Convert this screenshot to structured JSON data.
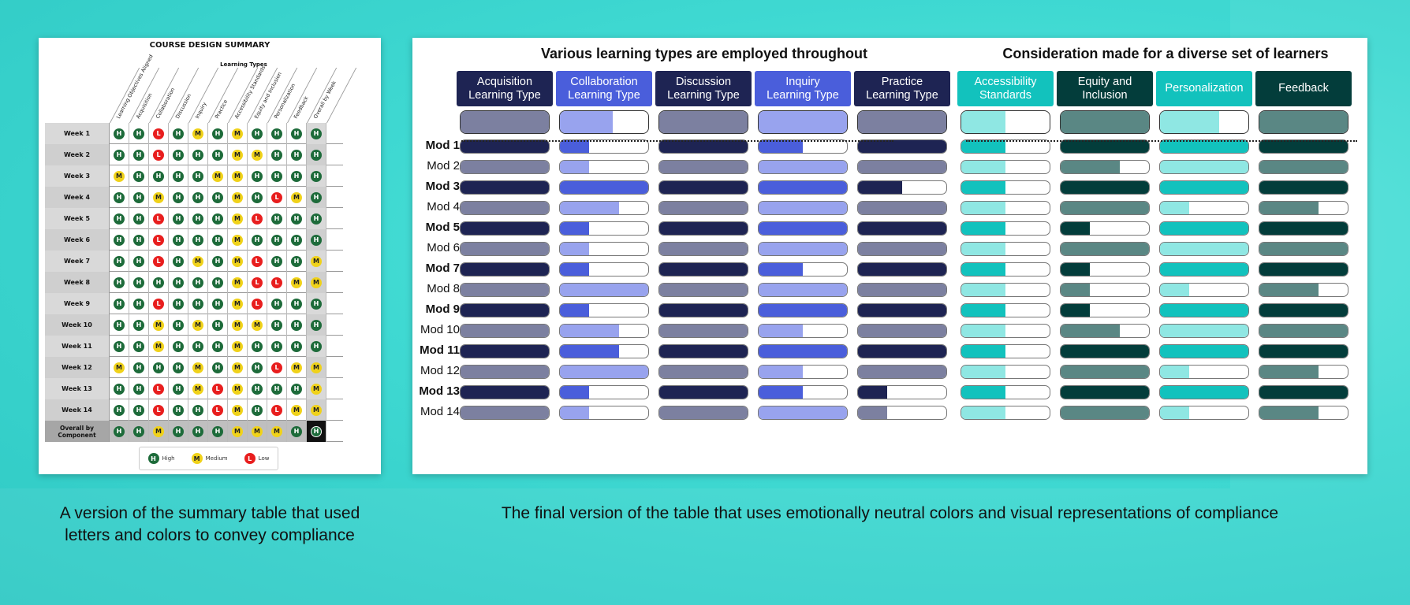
{
  "left_panel": {
    "title": "COURSE DESIGN SUMMARY",
    "group_header": "Learning Types",
    "columns": [
      "Learning Objectives Aligned",
      "Acquisition",
      "Collaboration",
      "Discussion",
      "Inquiry",
      "Practice",
      "Accessibility Standards",
      "Equity and Inclusion",
      "Personalization",
      "Feedback",
      "Overall by Week"
    ],
    "rows": [
      {
        "label": "Week 1",
        "ratings": [
          "H",
          "H",
          "L",
          "H",
          "M",
          "H",
          "M",
          "H",
          "H",
          "H",
          "H"
        ]
      },
      {
        "label": "Week 2",
        "ratings": [
          "H",
          "H",
          "L",
          "H",
          "H",
          "H",
          "M",
          "M",
          "H",
          "H",
          "H"
        ]
      },
      {
        "label": "Week 3",
        "ratings": [
          "M",
          "H",
          "H",
          "H",
          "H",
          "M",
          "M",
          "H",
          "H",
          "H",
          "H"
        ]
      },
      {
        "label": "Week 4",
        "ratings": [
          "H",
          "H",
          "M",
          "H",
          "H",
          "H",
          "M",
          "H",
          "L",
          "M",
          "H"
        ]
      },
      {
        "label": "Week 5",
        "ratings": [
          "H",
          "H",
          "L",
          "H",
          "H",
          "H",
          "M",
          "L",
          "H",
          "H",
          "H"
        ]
      },
      {
        "label": "Week 6",
        "ratings": [
          "H",
          "H",
          "L",
          "H",
          "H",
          "H",
          "M",
          "H",
          "H",
          "H",
          "H"
        ]
      },
      {
        "label": "Week 7",
        "ratings": [
          "H",
          "H",
          "L",
          "H",
          "M",
          "H",
          "M",
          "L",
          "H",
          "H",
          "M"
        ]
      },
      {
        "label": "Week 8",
        "ratings": [
          "H",
          "H",
          "H",
          "H",
          "H",
          "H",
          "M",
          "L",
          "L",
          "M",
          "M"
        ]
      },
      {
        "label": "Week 9",
        "ratings": [
          "H",
          "H",
          "L",
          "H",
          "H",
          "H",
          "M",
          "L",
          "H",
          "H",
          "H"
        ]
      },
      {
        "label": "Week 10",
        "ratings": [
          "H",
          "H",
          "M",
          "H",
          "M",
          "H",
          "M",
          "M",
          "H",
          "H",
          "H"
        ]
      },
      {
        "label": "Week 11",
        "ratings": [
          "H",
          "H",
          "M",
          "H",
          "H",
          "H",
          "M",
          "H",
          "H",
          "H",
          "H"
        ]
      },
      {
        "label": "Week 12",
        "ratings": [
          "M",
          "H",
          "H",
          "H",
          "M",
          "H",
          "M",
          "H",
          "L",
          "M",
          "M"
        ]
      },
      {
        "label": "Week 13",
        "ratings": [
          "H",
          "H",
          "L",
          "H",
          "M",
          "L",
          "M",
          "H",
          "H",
          "H",
          "M"
        ]
      },
      {
        "label": "Week 14",
        "ratings": [
          "H",
          "H",
          "L",
          "H",
          "H",
          "L",
          "M",
          "H",
          "L",
          "M",
          "M"
        ]
      }
    ],
    "overall": {
      "label_line1": "Overall by",
      "label_line2": "Component",
      "ratings": [
        "H",
        "H",
        "M",
        "H",
        "H",
        "H",
        "M",
        "M",
        "M",
        "H",
        "H"
      ]
    },
    "legend": [
      {
        "code": "H",
        "label": "High"
      },
      {
        "code": "M",
        "label": "Medium"
      },
      {
        "code": "L",
        "label": "Low"
      }
    ]
  },
  "right_panel": {
    "group_titles": [
      "Various learning types are employed throughout",
      "Consideration made for a diverse set of learners"
    ],
    "columns": [
      {
        "line1": "Acquisition",
        "line2": "Learning Type",
        "color": "#1e2453",
        "light": "#7c80a0",
        "head": "#1e2453",
        "summary": 1.0
      },
      {
        "line1": "Collaboration",
        "line2": "Learning Type",
        "color": "#4a5edb",
        "light": "#98a3ee",
        "head": "#4a5edb",
        "summary": 0.6
      },
      {
        "line1": "Discussion",
        "line2": "Learning Type",
        "color": "#1e2453",
        "light": "#7c80a0",
        "head": "#1e2453",
        "summary": 1.0
      },
      {
        "line1": "Inquiry",
        "line2": "Learning Type",
        "color": "#4a5edb",
        "light": "#98a3ee",
        "head": "#4a5edb",
        "summary": 1.0
      },
      {
        "line1": "Practice",
        "line2": "Learning Type",
        "color": "#1e2453",
        "light": "#7c80a0",
        "head": "#1e2453",
        "summary": 1.0
      },
      {
        "line1": "Accessibility",
        "line2": "Standards",
        "color": "#12c2bd",
        "light": "#8fe7e3",
        "head": "#12c2bd",
        "summary": 0.5
      },
      {
        "line1": "Equity and",
        "line2": "Inclusion",
        "color": "#033d3b",
        "light": "#5a8784",
        "head": "#033d3b",
        "summary": 1.0
      },
      {
        "line1": "Personalization",
        "line2": "",
        "color": "#12c2bd",
        "light": "#8fe7e3",
        "head": "#12c2bd",
        "summary": 0.67
      },
      {
        "line1": "Feedback",
        "line2": "",
        "color": "#033d3b",
        "light": "#5a8784",
        "head": "#033d3b",
        "summary": 1.0
      }
    ],
    "modules": [
      {
        "label": "Mod 1",
        "bold": true,
        "fills": [
          1,
          0.33,
          1,
          0.5,
          1,
          0.5,
          1,
          1,
          1
        ]
      },
      {
        "label": "Mod 2",
        "bold": false,
        "fills": [
          1,
          0.33,
          1,
          1,
          1,
          0.5,
          0.67,
          1,
          1
        ]
      },
      {
        "label": "Mod 3",
        "bold": true,
        "fills": [
          1,
          1,
          1,
          1,
          0.5,
          0.5,
          1,
          1,
          1
        ]
      },
      {
        "label": "Mod 4",
        "bold": false,
        "fills": [
          1,
          0.67,
          1,
          1,
          1,
          0.5,
          1,
          0.33,
          0.67
        ]
      },
      {
        "label": "Mod 5",
        "bold": true,
        "fills": [
          1,
          0.33,
          1,
          1,
          1,
          0.5,
          0.33,
          1,
          1
        ]
      },
      {
        "label": "Mod 6",
        "bold": false,
        "fills": [
          1,
          0.33,
          1,
          1,
          1,
          0.5,
          1,
          1,
          1
        ]
      },
      {
        "label": "Mod 7",
        "bold": true,
        "fills": [
          1,
          0.33,
          1,
          0.5,
          1,
          0.5,
          0.33,
          1,
          1
        ]
      },
      {
        "label": "Mod 8",
        "bold": false,
        "fills": [
          1,
          1,
          1,
          1,
          1,
          0.5,
          0.33,
          0.33,
          0.67
        ]
      },
      {
        "label": "Mod 9",
        "bold": true,
        "fills": [
          1,
          0.33,
          1,
          1,
          1,
          0.5,
          0.33,
          1,
          1
        ]
      },
      {
        "label": "Mod 10",
        "bold": false,
        "fills": [
          1,
          0.67,
          1,
          0.5,
          1,
          0.5,
          0.67,
          1,
          1
        ]
      },
      {
        "label": "Mod 11",
        "bold": true,
        "fills": [
          1,
          0.67,
          1,
          1,
          1,
          0.5,
          1,
          1,
          1
        ]
      },
      {
        "label": "Mod 12",
        "bold": false,
        "fills": [
          1,
          1,
          1,
          0.5,
          1,
          0.5,
          1,
          0.33,
          0.67
        ]
      },
      {
        "label": "Mod 13",
        "bold": true,
        "fills": [
          1,
          0.33,
          1,
          0.5,
          0.33,
          0.5,
          1,
          1,
          1
        ]
      },
      {
        "label": "Mod 14",
        "bold": false,
        "fills": [
          1,
          0.33,
          1,
          1,
          0.33,
          0.5,
          1,
          0.33,
          0.67
        ]
      }
    ]
  },
  "captions": {
    "left_line1": "A version of the summary table that used",
    "left_line2": "letters and colors to convey compliance",
    "right": "The final version of the table that uses emotionally neutral colors and visual representations of compliance"
  }
}
